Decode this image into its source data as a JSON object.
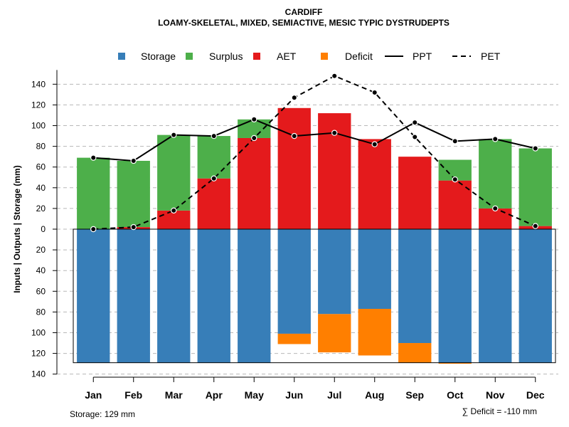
{
  "chart_data": {
    "type": "bar",
    "title": "CARDIFF",
    "subtitle": "LOAMY-SKELETAL, MIXED, SEMIACTIVE, MESIC TYPIC DYSTRUDEPTS",
    "ylabel": "Inputs | Outputs | Storage    (mm)",
    "ylim": [
      -140,
      150
    ],
    "yticks": [
      140,
      120,
      100,
      80,
      60,
      40,
      20,
      0,
      -20,
      -40,
      -60,
      -80,
      -100,
      -120,
      -140
    ],
    "ytick_labels": [
      "140",
      "120",
      "100",
      "80",
      "60",
      "40",
      "20",
      "0",
      "20",
      "40",
      "60",
      "80",
      "100",
      "120",
      "140"
    ],
    "categories": [
      "Jan",
      "Feb",
      "Mar",
      "Apr",
      "May",
      "Jun",
      "Jul",
      "Aug",
      "Sep",
      "Oct",
      "Nov",
      "Dec"
    ],
    "storage_capacity": 129,
    "series": [
      {
        "name": "AET",
        "color": "#E41A1C",
        "values": [
          0,
          2,
          18,
          49,
          88,
          117,
          112,
          87,
          70,
          47,
          20,
          3
        ]
      },
      {
        "name": "Surplus",
        "color": "#4DAF4A",
        "values": [
          69,
          64,
          73,
          41,
          18,
          0,
          0,
          0,
          0,
          20,
          67,
          75
        ]
      },
      {
        "name": "Storage",
        "color": "#377EB8",
        "values": [
          129,
          129,
          129,
          129,
          129,
          101,
          82,
          77,
          110,
          129,
          129,
          129
        ]
      },
      {
        "name": "Deficit",
        "color": "#FF7F00",
        "values": [
          0,
          0,
          0,
          0,
          0,
          10,
          37,
          45,
          19,
          1,
          0,
          0
        ]
      },
      {
        "name": "PPT",
        "color": "#000000",
        "values": [
          69,
          66,
          91,
          90,
          106,
          90,
          93,
          82,
          103,
          85,
          87,
          78
        ]
      },
      {
        "name": "PET",
        "color": "#000000",
        "values": [
          0,
          2,
          18,
          49,
          88,
          127,
          148,
          132,
          89,
          48,
          20,
          3
        ]
      }
    ],
    "legend": {
      "position": "top",
      "items": [
        {
          "label": "Storage",
          "kind": "box",
          "color": "#377EB8"
        },
        {
          "label": "Surplus",
          "kind": "box",
          "color": "#4DAF4A"
        },
        {
          "label": "AET",
          "kind": "box",
          "color": "#E41A1C"
        },
        {
          "label": "Deficit",
          "kind": "box",
          "color": "#FF7F00"
        },
        {
          "label": "PPT",
          "kind": "solid-line",
          "color": "#000000"
        },
        {
          "label": "PET",
          "kind": "dashed-line",
          "color": "#000000"
        }
      ]
    },
    "footer_left": "Storage: 129 mm",
    "footer_right": "∑ Deficit = -110 mm",
    "grid": true
  }
}
